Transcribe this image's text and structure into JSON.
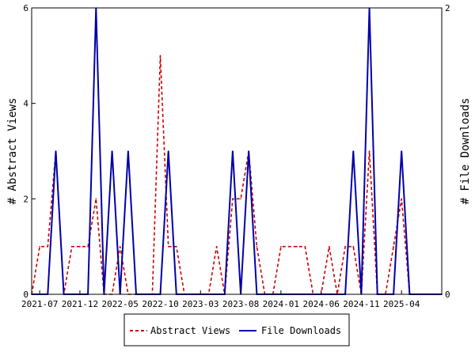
{
  "chart_data": {
    "type": "line",
    "x": [
      "2021-06-01",
      "2021-07-01",
      "2021-08-01",
      "2021-09-01",
      "2021-10-01",
      "2021-11-01",
      "2021-12-01",
      "2022-01-01",
      "2022-02-01",
      "2022-03-01",
      "2022-04-01",
      "2022-05-01",
      "2022-06-01",
      "2022-07-01",
      "2022-08-01",
      "2022-09-01",
      "2022-10-01",
      "2022-11-01",
      "2022-12-01",
      "2023-01-01",
      "2023-02-01",
      "2023-03-01",
      "2023-04-01",
      "2023-05-01",
      "2023-06-01",
      "2023-07-01",
      "2023-08-01",
      "2023-09-01",
      "2023-10-01",
      "2023-11-01",
      "2023-12-01",
      "2024-01-01",
      "2024-02-01",
      "2024-03-01",
      "2024-04-01",
      "2024-05-01",
      "2024-06-01",
      "2024-07-01",
      "2024-08-01",
      "2024-09-01",
      "2024-10-01",
      "2024-11-01",
      "2024-12-01",
      "2025-01-01",
      "2025-02-01",
      "2025-03-01",
      "2025-04-01",
      "2025-05-01",
      "2025-06-01",
      "2025-07-01",
      "2025-08-01",
      "2025-09-01"
    ],
    "series": [
      {
        "name": "Abstract Views",
        "axis": "left",
        "color": "#cc0000",
        "dash": "dashed",
        "values": [
          0,
          1,
          1,
          3,
          0,
          1,
          1,
          1,
          2,
          0,
          0,
          1,
          0,
          0,
          0,
          0,
          5,
          1,
          1,
          0,
          0,
          0,
          0,
          1,
          0,
          2,
          2,
          3,
          1,
          0,
          0,
          1,
          1,
          1,
          1,
          0,
          0,
          1,
          0,
          1,
          1,
          0,
          3,
          0,
          0,
          1,
          2,
          0,
          0,
          0,
          0,
          0
        ]
      },
      {
        "name": "File Downloads",
        "axis": "right",
        "color": "#0000aa",
        "dash": "solid",
        "values": [
          0,
          0,
          0,
          1,
          0,
          0,
          0,
          0,
          2,
          0,
          1,
          0,
          1,
          0,
          0,
          0,
          0,
          1,
          0,
          0,
          0,
          0,
          0,
          0,
          0,
          1,
          0,
          1,
          0,
          0,
          0,
          0,
          0,
          0,
          0,
          0,
          0,
          0,
          0,
          0,
          1,
          0,
          2,
          0,
          0,
          0,
          1,
          0,
          0,
          0,
          0,
          0
        ]
      }
    ],
    "x_ticks": [
      "2021-07",
      "2021-12",
      "2022-05",
      "2022-10",
      "2023-03",
      "2023-08",
      "2024-01",
      "2024-06",
      "2024-11",
      "2025-04"
    ],
    "ylabel_left": "# Abstract Views",
    "ylabel_right": "# File Downloads",
    "ylim_left": [
      0,
      6
    ],
    "yticks_left": [
      0,
      2,
      4,
      6
    ],
    "ylim_right": [
      0,
      2
    ],
    "yticks_right": [
      0,
      2
    ],
    "xlim": [
      "2021-06-01",
      "2025-09-01"
    ],
    "grid": false,
    "legend": [
      "Abstract Views",
      "File Downloads"
    ],
    "legend_position": "bottom"
  }
}
